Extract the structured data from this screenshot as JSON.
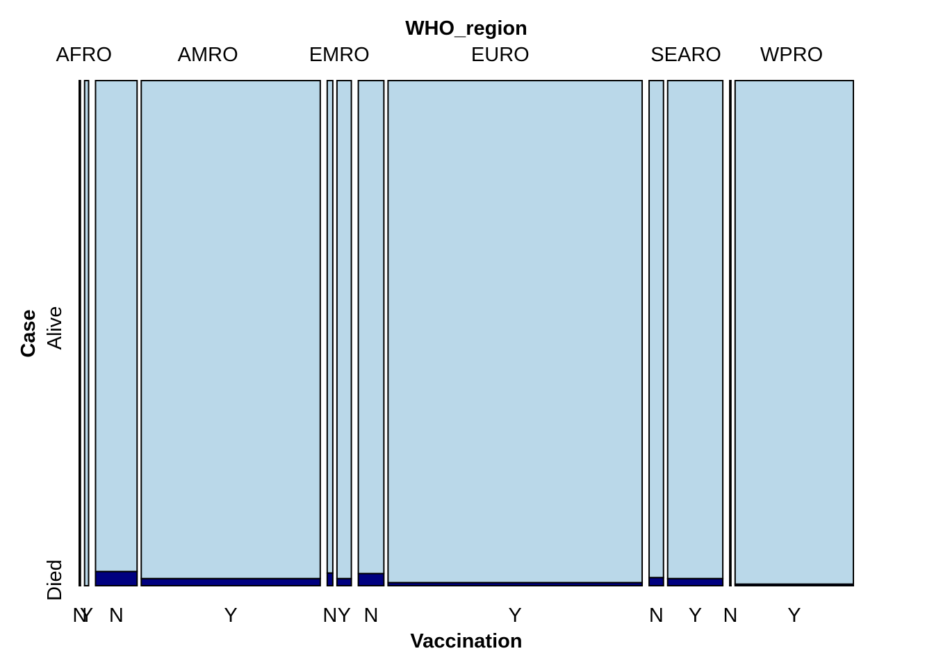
{
  "chart_data": {
    "type": "mosaic",
    "title": "WHO_region",
    "xlabel": "Vaccination",
    "ylabel": "Case",
    "y_levels": [
      "Died",
      "Alive"
    ],
    "colors": {
      "Alive": "#BAD8E9",
      "Died": "#000080"
    },
    "regions": [
      {
        "label": "AFRO",
        "cells": [
          {
            "label": "N",
            "share": 0.0015,
            "died_fraction": 0.0
          },
          {
            "label": "Y",
            "share": 0.005,
            "died_fraction": 0.0
          }
        ]
      },
      {
        "label": "AMRO",
        "cells": [
          {
            "label": "N",
            "share": 0.052,
            "died_fraction": 0.028
          },
          {
            "label": "Y",
            "share": 0.224,
            "died_fraction": 0.014
          }
        ]
      },
      {
        "label": "EMRO",
        "cells": [
          {
            "label": "N",
            "share": 0.007,
            "died_fraction": 0.025
          },
          {
            "label": "Y",
            "share": 0.018,
            "died_fraction": 0.014
          }
        ]
      },
      {
        "label": "EURO",
        "cells": [
          {
            "label": "N",
            "share": 0.032,
            "died_fraction": 0.024
          },
          {
            "label": "Y",
            "share": 0.318,
            "died_fraction": 0.006
          }
        ]
      },
      {
        "label": "SEARO",
        "cells": [
          {
            "label": "N",
            "share": 0.018,
            "died_fraction": 0.016
          },
          {
            "label": "Y",
            "share": 0.069,
            "died_fraction": 0.014
          }
        ]
      },
      {
        "label": "WPRO",
        "cells": [
          {
            "label": "N",
            "share": 0.0015,
            "died_fraction": 0.0
          },
          {
            "label": "Y",
            "share": 0.148,
            "died_fraction": 0.003
          }
        ]
      }
    ]
  }
}
